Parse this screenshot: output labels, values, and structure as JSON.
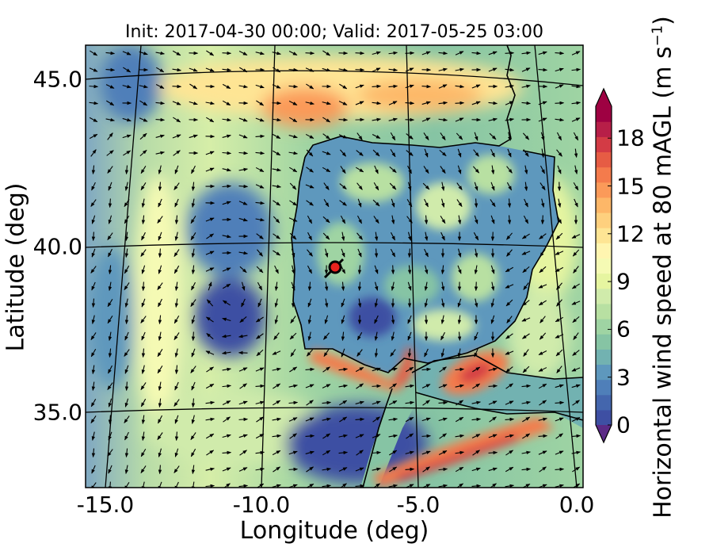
{
  "title": "Init: 2017-04-30 00:00; Valid: 2017-05-25 03:00",
  "x_axis": {
    "label": "Longitude (deg)",
    "ticks": [
      "-15.0",
      "-10.0",
      "-5.0",
      "0.0"
    ]
  },
  "y_axis": {
    "label": "Latitude (deg)",
    "ticks": [
      "45.0",
      "40.0",
      "35.0"
    ]
  },
  "colorbar": {
    "label_main": "Horizontal wind speed at 80 mAGL (m s",
    "label_exp": "−1",
    "label_end": ")",
    "ticks": [
      "0",
      "3",
      "6",
      "9",
      "12",
      "15",
      "18"
    ],
    "range": [
      0,
      20
    ],
    "extend": "both",
    "colormap": "Spectral_r",
    "colors": [
      "#3e4fa3",
      "#4466ad",
      "#4f7fb9",
      "#5e98bd",
      "#72b2b1",
      "#86c4a4",
      "#9fd4a3",
      "#b8e0a2",
      "#d0ebab",
      "#e6f5a0",
      "#f5fab4",
      "#fff5b0",
      "#fee594",
      "#fed07e",
      "#fdb768",
      "#fb9a59",
      "#f47b4c",
      "#e65c44",
      "#d33b45",
      "#b71f48",
      "#9e0142"
    ]
  },
  "map": {
    "lon_range": [
      -16.0,
      0.2
    ],
    "lat_range": [
      32.5,
      46.2
    ],
    "graticule_lons": [
      -15,
      -10,
      -5,
      0
    ],
    "graticule_lats": [
      45,
      40,
      35
    ],
    "marker": {
      "lon": -7.7,
      "lat": 39.3,
      "color": "#e8231e"
    }
  }
}
